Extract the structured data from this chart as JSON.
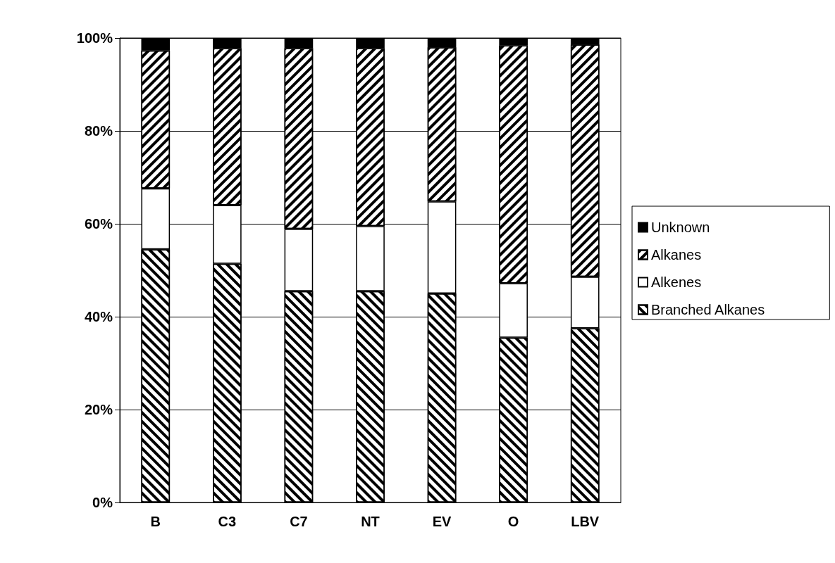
{
  "chart_data": {
    "type": "bar",
    "stacked": true,
    "categories": [
      "B",
      "C3",
      "C7",
      "NT",
      "EV",
      "O",
      "LBV"
    ],
    "series": [
      {
        "name": "Branched Alkanes",
        "color": "#ffffff",
        "values": [
          54.5,
          51.4,
          45.5,
          45.5,
          45.0,
          35.5,
          37.5
        ]
      },
      {
        "name": "Alkenes",
        "color": "#ffffff",
        "values": [
          13.1,
          12.6,
          13.4,
          14.0,
          19.8,
          11.7,
          11.1
        ]
      },
      {
        "name": "Alkanes",
        "color": "#ffffff",
        "values": [
          29.7,
          33.8,
          38.9,
          38.3,
          33.2,
          51.2,
          50.0
        ]
      },
      {
        "name": "Unknown",
        "color": "#000000",
        "values": [
          2.7,
          2.2,
          2.2,
          2.2,
          2.0,
          1.6,
          1.4
        ]
      }
    ],
    "ylim": [
      0,
      100
    ],
    "yticks": [
      {
        "value": 0,
        "label": "0%"
      },
      {
        "value": 20,
        "label": "20%"
      },
      {
        "value": 40,
        "label": "40%"
      },
      {
        "value": 60,
        "label": "60%"
      },
      {
        "value": 80,
        "label": "80%"
      },
      {
        "value": 100,
        "label": "100%"
      }
    ],
    "grid": "y",
    "legend": "right"
  }
}
